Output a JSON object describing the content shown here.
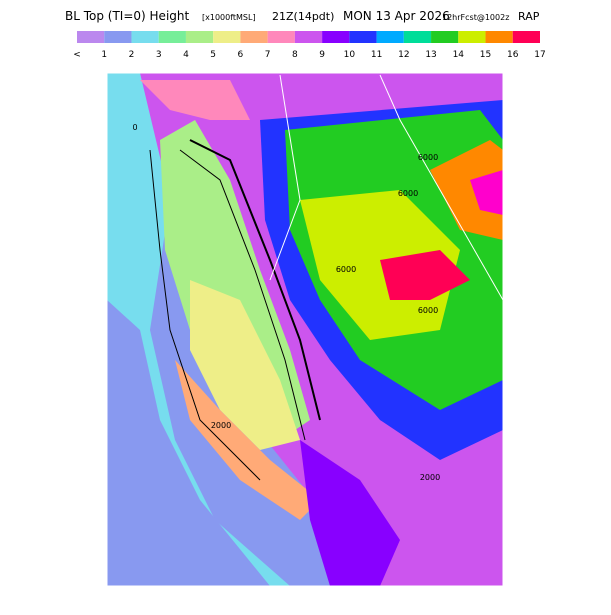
{
  "header": {
    "title": "BL Top (TI=0) Height",
    "units": "[x1000ftMSL]",
    "valid_time": "21Z(14pdt)",
    "date": "MON 13 Apr 2026",
    "forecast": "12hrFcst@1002z",
    "model": "RAP"
  },
  "colorbar": {
    "labels": [
      "<",
      "1",
      "2",
      "3",
      "4",
      "5",
      "6",
      "7",
      "8",
      "9",
      "10",
      "11",
      "12",
      "13",
      "14",
      "15",
      "16",
      "17"
    ],
    "colors": [
      "#bb88ee",
      "#8899f0",
      "#77ddee",
      "#77ee99",
      "#aaee88",
      "#eeee88",
      "#ffaa77",
      "#ff88bb",
      "#cc55ee",
      "#8800ff",
      "#2233ff",
      "#00aaff",
      "#00dd99",
      "#22cc22",
      "#ccee00",
      "#ff8800",
      "#ff0055"
    ]
  },
  "map": {
    "contour_labels": [
      "6000",
      "6000",
      "6000",
      "6000",
      "2000",
      "2000",
      "0"
    ]
  }
}
